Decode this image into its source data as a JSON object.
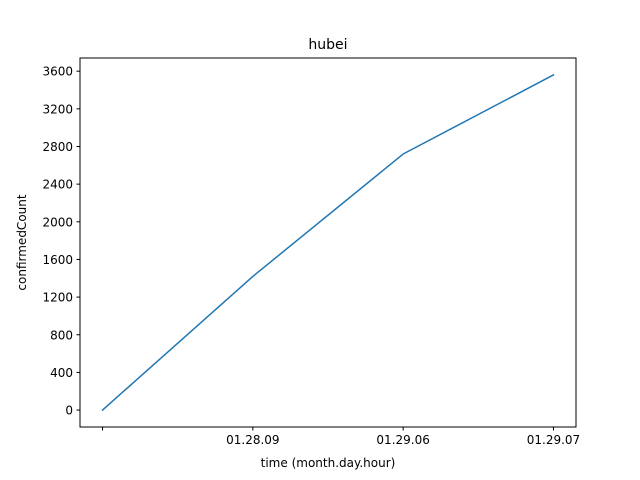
{
  "chart_data": {
    "type": "line",
    "title": "hubei",
    "xlabel": "time (month.day.hour)",
    "ylabel": "confirmedCount",
    "categories": [
      "",
      "01.28.09",
      "01.29.06",
      "01.29.07"
    ],
    "series": [
      {
        "values": [
          0,
          1420,
          2720,
          3560
        ],
        "color": "#1f77b4"
      }
    ],
    "ylim": [
      -180,
      3740
    ],
    "yticks": [
      0,
      400,
      800,
      1200,
      1600,
      2000,
      2400,
      2800,
      3200,
      3600
    ],
    "grid": false,
    "legend": "none"
  }
}
